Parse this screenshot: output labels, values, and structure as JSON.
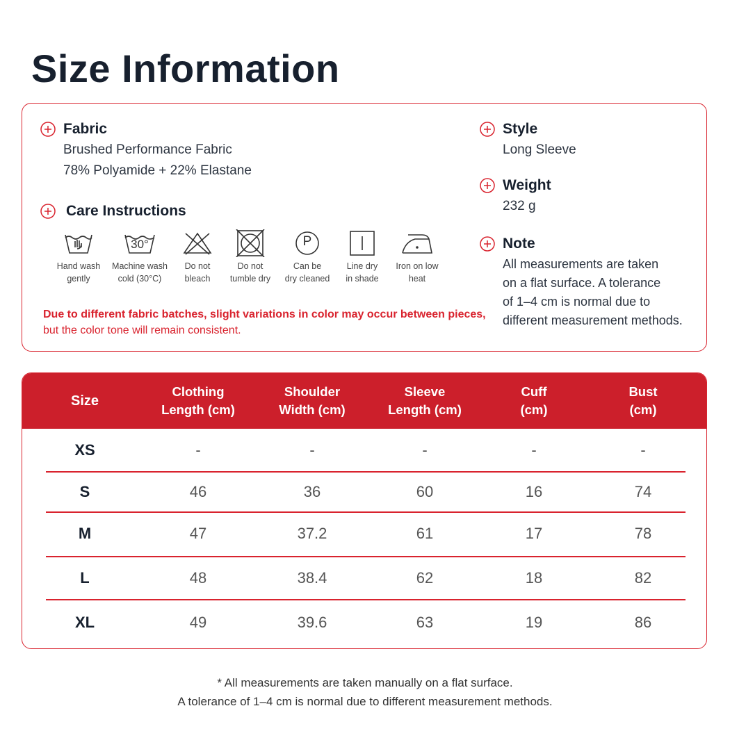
{
  "header": {
    "title": "Size Information"
  },
  "info": {
    "fabric": {
      "heading": "Fabric",
      "lines": [
        "Brushed Performance Fabric",
        "78% Polyamide + 22% Elastane"
      ]
    },
    "care": {
      "heading": "Care Instructions",
      "items": [
        {
          "lines": [
            "Hand wash",
            "gently"
          ]
        },
        {
          "symbol": "30°",
          "lines": [
            "Machine wash",
            "cold (30°C)"
          ]
        },
        {
          "lines": [
            "Do not",
            "bleach"
          ]
        },
        {
          "lines": [
            "Do not",
            "tumble dry"
          ]
        },
        {
          "symbol": "P",
          "lines": [
            "Can be",
            "dry cleaned"
          ]
        },
        {
          "lines": [
            "Line dry",
            "in shade"
          ]
        },
        {
          "lines": [
            "Iron on low",
            "heat"
          ]
        }
      ]
    },
    "notice": [
      "Due to different fabric batches, slight variations in color may occur between pieces,",
      "but the color tone will remain consistent."
    ],
    "style": {
      "heading": "Style",
      "lines": [
        "Long Sleeve"
      ]
    },
    "weight": {
      "heading": "Weight",
      "lines": [
        "232 g"
      ]
    },
    "note": {
      "heading": "Note",
      "lines": [
        "All measurements are taken",
        "on a flat surface. A tolerance",
        "of 1–4 cm is normal due to",
        "different measurement methods."
      ]
    }
  },
  "table": {
    "headers": [
      [
        "Size"
      ],
      [
        "Clothing",
        "Length (cm)"
      ],
      [
        "Shoulder",
        "Width (cm)"
      ],
      [
        "Sleeve",
        "Length (cm)"
      ],
      [
        "Cuff",
        "(cm)"
      ],
      [
        "Bust",
        "(cm)"
      ]
    ],
    "rows": [
      [
        "XS",
        "-",
        "-",
        "-",
        "-",
        "-"
      ],
      [
        "S",
        46,
        36,
        60,
        16,
        74
      ],
      [
        "M",
        47,
        37.2,
        61,
        17,
        78
      ],
      [
        "L",
        48,
        38.4,
        62,
        18,
        82
      ],
      [
        "XL",
        49,
        39.6,
        63,
        19,
        86
      ]
    ]
  },
  "footnote": [
    "* All measurements are taken manually on a flat surface.",
    "A tolerance of 1–4 cm is normal due to different measurement methods."
  ]
}
